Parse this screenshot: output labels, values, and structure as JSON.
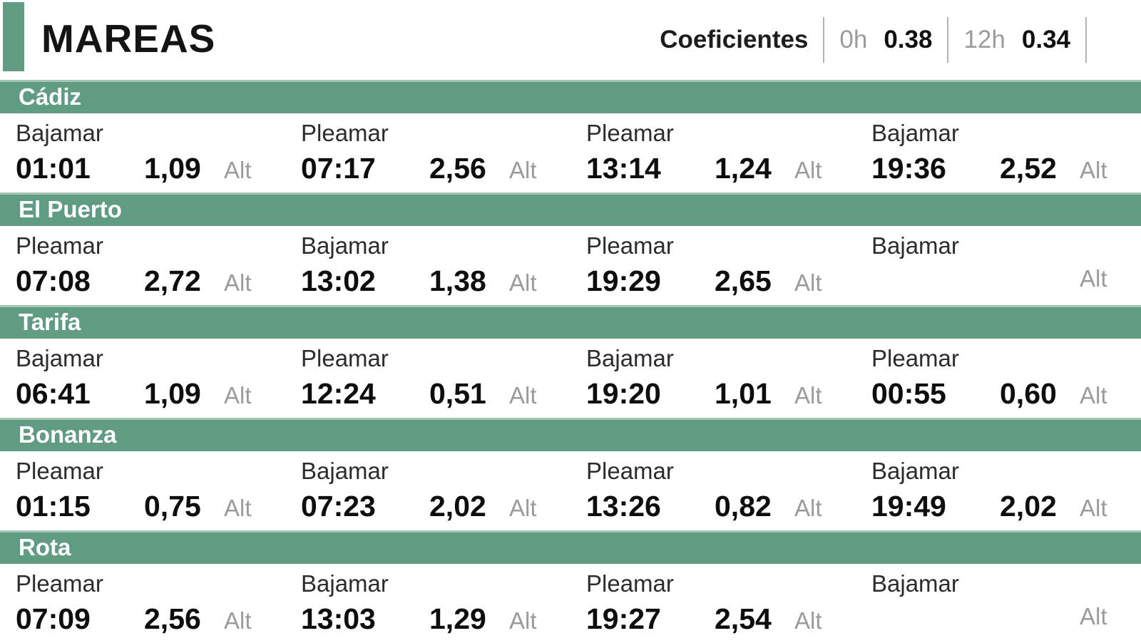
{
  "chart_data": {
    "type": "table",
    "title": "MAREAS",
    "coefficients": {
      "label": "Coeficientes",
      "items": [
        {
          "time": "0h",
          "value": "0.38"
        },
        {
          "time": "12h",
          "value": "0.34"
        }
      ]
    },
    "alt_label": "Alt",
    "sections": [
      {
        "city": "Cádiz",
        "tides": [
          {
            "type": "Bajamar",
            "time": "01:01",
            "height": "1,09"
          },
          {
            "type": "Pleamar",
            "time": "07:17",
            "height": "2,56"
          },
          {
            "type": "Pleamar",
            "time": "13:14",
            "height": "1,24"
          },
          {
            "type": "Bajamar",
            "time": "19:36",
            "height": "2,52"
          }
        ]
      },
      {
        "city": "El Puerto",
        "tides": [
          {
            "type": "Pleamar",
            "time": "07:08",
            "height": "2,72"
          },
          {
            "type": "Bajamar",
            "time": "13:02",
            "height": "1,38"
          },
          {
            "type": "Pleamar",
            "time": "19:29",
            "height": "2,65"
          },
          {
            "type": "Bajamar",
            "time": "",
            "height": ""
          }
        ]
      },
      {
        "city": "Tarifa",
        "tides": [
          {
            "type": "Bajamar",
            "time": "06:41",
            "height": "1,09"
          },
          {
            "type": "Pleamar",
            "time": "12:24",
            "height": "0,51"
          },
          {
            "type": "Bajamar",
            "time": "19:20",
            "height": "1,01"
          },
          {
            "type": "Pleamar",
            "time": "00:55",
            "height": "0,60"
          }
        ]
      },
      {
        "city": "Bonanza",
        "tides": [
          {
            "type": "Pleamar",
            "time": "01:15",
            "height": "0,75"
          },
          {
            "type": "Bajamar",
            "time": "07:23",
            "height": "2,02"
          },
          {
            "type": "Pleamar",
            "time": "13:26",
            "height": "0,82"
          },
          {
            "type": "Bajamar",
            "time": "19:49",
            "height": "2,02"
          }
        ]
      },
      {
        "city": "Rota",
        "tides": [
          {
            "type": "Pleamar",
            "time": "07:09",
            "height": "2,56"
          },
          {
            "type": "Bajamar",
            "time": "13:03",
            "height": "1,29"
          },
          {
            "type": "Pleamar",
            "time": "19:27",
            "height": "2,54"
          },
          {
            "type": "Bajamar",
            "time": "",
            "height": ""
          }
        ]
      }
    ]
  },
  "colors": {
    "green": "#5f9c82",
    "green_light": "#a3c6b3",
    "muted_text": "#9b9b9b",
    "ink": "#141414"
  }
}
